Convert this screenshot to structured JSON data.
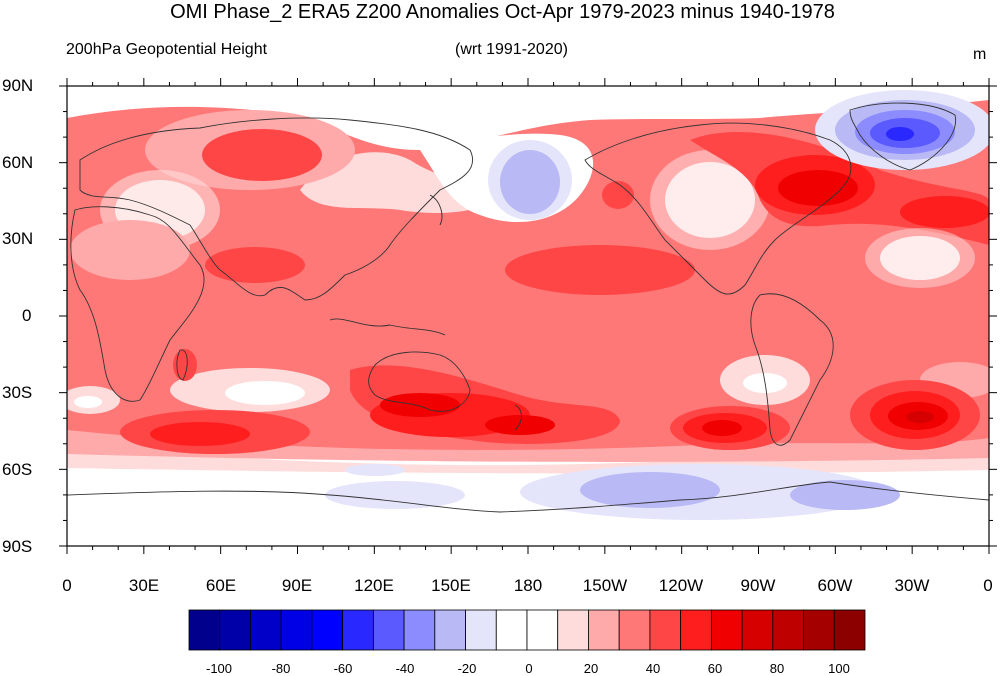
{
  "title": "OMI Phase_2 ERA5 Z200 Anomalies Oct-Apr 1979-2023 minus 1940-1978",
  "subtitle_left": "200hPa Geopotential Height",
  "subtitle_center": "(wrt 1991-2020)",
  "units": "m",
  "y_ticks": [
    "90N",
    "60N",
    "30N",
    "0",
    "30S",
    "60S",
    "90S"
  ],
  "x_ticks": [
    "0",
    "30E",
    "60E",
    "90E",
    "120E",
    "150E",
    "180",
    "150W",
    "120W",
    "90W",
    "60W",
    "30W",
    "0"
  ],
  "colorbar": {
    "labels": [
      "-100",
      "-80",
      "-60",
      "-40",
      "-20",
      "0",
      "20",
      "40",
      "60",
      "80",
      "100"
    ],
    "colors": [
      "#00008c",
      "#0000a8",
      "#0000c8",
      "#0000e6",
      "#0000ff",
      "#2828ff",
      "#5a5aff",
      "#8c8cff",
      "#b9b9f5",
      "#e4e4fa",
      "#ffffff",
      "#ffffff",
      "#ffdcdc",
      "#ffaaaa",
      "#ff7878",
      "#ff4646",
      "#ff1e1e",
      "#f00000",
      "#d70000",
      "#be0000",
      "#a50000",
      "#8c0000"
    ]
  },
  "palette": {
    "map_base": "#ff7878",
    "pos_light": "#ffaaaa",
    "pos_pale": "#ffdcdc",
    "pos_mid": "#ff4646",
    "pos_strong": "#ff1e1e",
    "pos_deep": "#f00000",
    "pos_dark": "#d70000",
    "neg_pale": "#e4e4fa",
    "neg_light": "#b9b9f5",
    "neg_mid": "#8c8cff",
    "neg_strong": "#5a5aff",
    "neg_deep": "#2828ff",
    "coast": "#333333"
  }
}
